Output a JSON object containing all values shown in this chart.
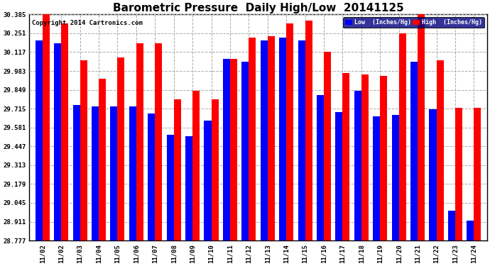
{
  "title": "Barometric Pressure  Daily High/Low  20141125",
  "copyright": "Copyright 2014 Cartronics.com",
  "legend_low": "Low  (Inches/Hg)",
  "legend_high": "High  (Inches/Hg)",
  "dates": [
    "11/02",
    "11/02",
    "11/03",
    "11/04",
    "11/05",
    "11/06",
    "11/07",
    "11/08",
    "11/09",
    "11/10",
    "11/11",
    "11/12",
    "11/13",
    "11/14",
    "11/15",
    "11/16",
    "11/17",
    "11/18",
    "11/19",
    "11/20",
    "11/21",
    "11/22",
    "11/23",
    "11/24"
  ],
  "low_values": [
    30.2,
    30.18,
    29.74,
    29.73,
    29.73,
    29.73,
    29.68,
    29.53,
    29.52,
    29.63,
    30.07,
    30.05,
    30.2,
    30.22,
    30.2,
    29.81,
    29.69,
    29.84,
    29.66,
    29.67,
    30.05,
    29.71,
    28.99,
    28.92
  ],
  "high_values": [
    30.5,
    30.32,
    30.06,
    29.93,
    30.08,
    30.18,
    30.18,
    29.78,
    29.84,
    29.78,
    30.07,
    30.22,
    30.23,
    30.32,
    30.34,
    30.12,
    29.97,
    29.96,
    29.95,
    30.25,
    30.39,
    30.06,
    29.72,
    29.72
  ],
  "ylim_min": 28.777,
  "ylim_max": 30.385,
  "yticks": [
    28.777,
    28.911,
    29.045,
    29.179,
    29.313,
    29.447,
    29.581,
    29.715,
    29.849,
    29.983,
    30.117,
    30.251,
    30.385
  ],
  "bar_width": 0.38,
  "low_color": "#0000ff",
  "high_color": "#ff0000",
  "bg_color": "#ffffff",
  "grid_color": "#aaaaaa",
  "title_fontsize": 11,
  "tick_fontsize": 6.5,
  "copyright_fontsize": 6.5
}
